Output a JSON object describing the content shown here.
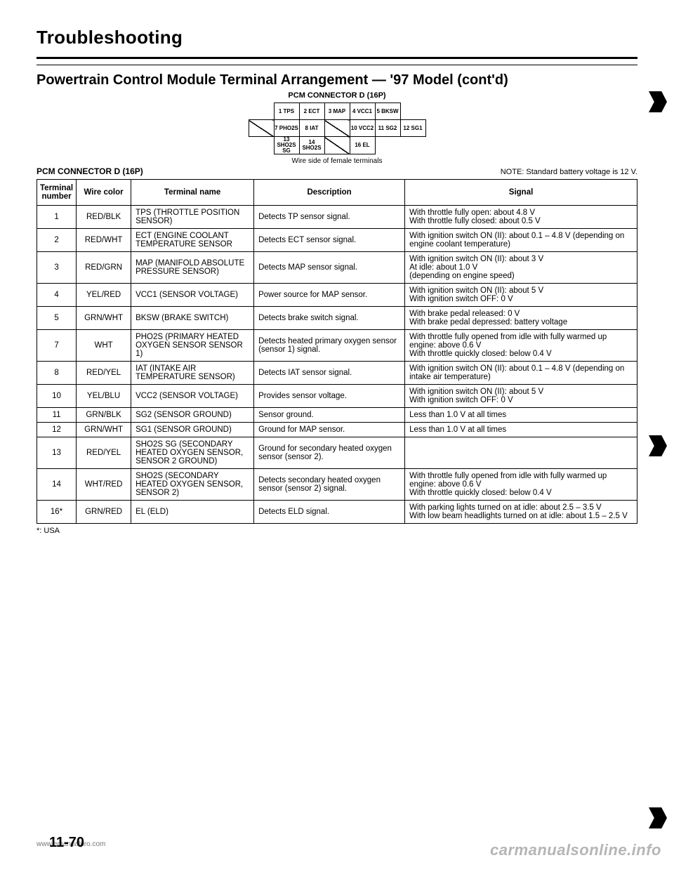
{
  "page": {
    "title": "Troubleshooting",
    "subtitle": "Powertrain Control Module Terminal Arrangement — '97 Model (cont'd)",
    "connector_label": "PCM CONNECTOR D (16P)",
    "wire_side": "Wire side of female terminals",
    "pcm_left": "PCM CONNECTOR D (16P)",
    "note": "NOTE: Standard battery voltage is 12 V.",
    "footnote": "*: USA",
    "page_number": "11-70",
    "watermark_left": "www.emanualpro.com",
    "watermark_right": "carmanualsonline.info"
  },
  "connector": {
    "rows": [
      [
        "1\nTPS",
        "2\nECT",
        "3\nMAP",
        "4\nVCC1",
        "5\nBKSW"
      ],
      [
        "/",
        "7\nPHO2S",
        "8\nIAT",
        "/",
        "10\nVCC2",
        "11\nSG2",
        "12\nSG1"
      ],
      [
        "13\nSHO2S SG",
        "14\nSHO2S",
        "/",
        "16\nEL"
      ]
    ]
  },
  "table": {
    "headers": [
      "Terminal number",
      "Wire color",
      "Terminal name",
      "Description",
      "Signal"
    ],
    "rows": [
      {
        "num": "1",
        "wire": "RED/BLK",
        "term": "TPS (THROTTLE POSITION SENSOR)",
        "desc": "Detects TP sensor signal.",
        "sig": "With throttle fully open: about 4.8 V\nWith throttle fully closed: about 0.5 V"
      },
      {
        "num": "2",
        "wire": "RED/WHT",
        "term": "ECT (ENGINE COOLANT TEMPERATURE SENSOR",
        "desc": "Detects ECT sensor signal.",
        "sig": "With ignition switch ON (II): about 0.1 – 4.8 V (depending on engine coolant temperature)"
      },
      {
        "num": "3",
        "wire": "RED/GRN",
        "term": "MAP (MANIFOLD ABSOLUTE PRESSURE SENSOR)",
        "desc": "Detects MAP sensor signal.",
        "sig": "With ignition switch ON (II): about 3 V\nAt idle: about 1.0 V\n(depending on engine speed)"
      },
      {
        "num": "4",
        "wire": "YEL/RED",
        "term": "VCC1 (SENSOR VOLTAGE)",
        "desc": "Power source for MAP sensor.",
        "sig": "With ignition switch ON (II): about 5 V\nWith ignition switch OFF: 0 V"
      },
      {
        "num": "5",
        "wire": "GRN/WHT",
        "term": "BKSW (BRAKE SWITCH)",
        "desc": "Detects brake switch signal.",
        "sig": "With brake pedal released: 0 V\nWith brake pedal depressed: battery voltage"
      },
      {
        "num": "7",
        "wire": "WHT",
        "term": "PHO2S (PRIMARY HEATED OXYGEN SENSOR SENSOR 1)",
        "desc": "Detects heated primary oxygen sensor (sensor 1) signal.",
        "sig": "With throttle fully opened from idle with fully warmed up engine: above 0.6 V\nWith throttle quickly closed: below 0.4 V"
      },
      {
        "num": "8",
        "wire": "RED/YEL",
        "term": "IAT (INTAKE AIR TEMPERATURE SENSOR)",
        "desc": "Detects IAT sensor signal.",
        "sig": "With ignition switch ON (II): about 0.1 – 4.8 V (depending on intake air temperature)"
      },
      {
        "num": "10",
        "wire": "YEL/BLU",
        "term": "VCC2 (SENSOR VOLTAGE)",
        "desc": "Provides sensor voltage.",
        "sig": "With ignition switch ON (II): about 5 V\nWith ignition switch OFF: 0 V"
      },
      {
        "num": "11",
        "wire": "GRN/BLK",
        "term": "SG2 (SENSOR GROUND)",
        "desc": "Sensor ground.",
        "sig": "Less than 1.0 V at all times"
      },
      {
        "num": "12",
        "wire": "GRN/WHT",
        "term": "SG1 (SENSOR GROUND)",
        "desc": "Ground for MAP sensor.",
        "sig": "Less than 1.0 V at all times"
      },
      {
        "num": "13",
        "wire": "RED/YEL",
        "term": "SHO2S SG (SECONDARY HEATED OXYGEN SENSOR, SENSOR 2 GROUND)",
        "desc": "Ground for secondary heated oxygen sensor (sensor 2).",
        "sig": ""
      },
      {
        "num": "14",
        "wire": "WHT/RED",
        "term": "SHO2S (SECONDARY HEATED OXYGEN SENSOR, SENSOR 2)",
        "desc": "Detects secondary heated oxygen sensor (sensor 2) signal.",
        "sig": "With throttle fully opened from idle with fully warmed up engine: above 0.6 V\nWith throttle quickly closed: below 0.4 V"
      },
      {
        "num": "16*",
        "wire": "GRN/RED",
        "term": "EL (ELD)",
        "desc": "Detects ELD signal.",
        "sig": "With parking lights turned on at idle: about 2.5 – 3.5 V\nWith low beam headlights turned on at idle: about 1.5 – 2.5 V"
      }
    ]
  }
}
